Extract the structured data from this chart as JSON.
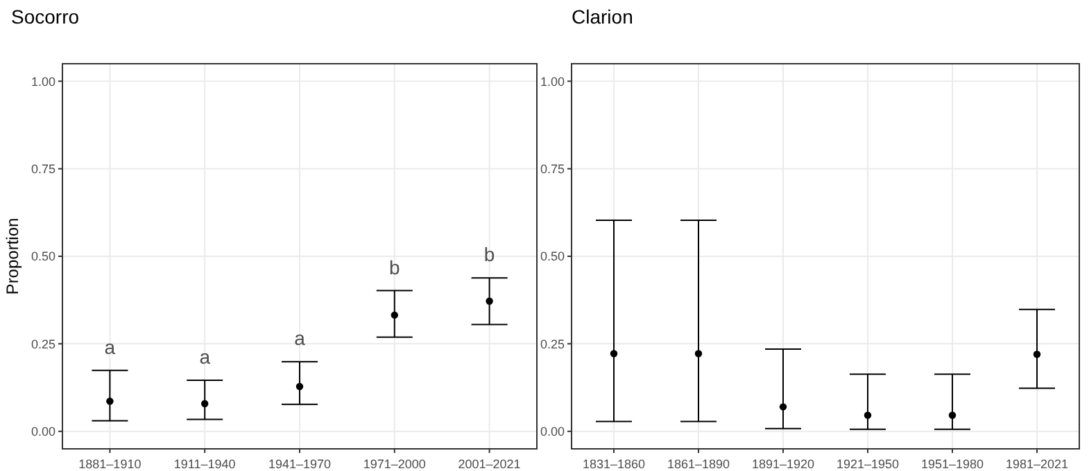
{
  "chart_data": [
    {
      "type": "scatter",
      "title": "Socorro",
      "ylabel": "Proportion",
      "categories": [
        "1881–1910",
        "1911–1940",
        "1941–1970",
        "1971–2000",
        "2001–2021"
      ],
      "values": [
        0.086,
        0.079,
        0.128,
        0.332,
        0.372
      ],
      "errors": [
        [
          0.03,
          0.174
        ],
        [
          0.034,
          0.146
        ],
        [
          0.077,
          0.199
        ],
        [
          0.269,
          0.402
        ],
        [
          0.305,
          0.438
        ]
      ],
      "color": "#000000",
      "marker": "circle",
      "ylim": [
        -0.05,
        1.05
      ],
      "yticks": [
        {
          "value": 0,
          "label": "0.00"
        },
        {
          "value": 0.25,
          "label": "0.25"
        },
        {
          "value": 0.5,
          "label": "0.50"
        },
        {
          "value": 0.75,
          "label": "0.75"
        },
        {
          "value": 1,
          "label": "1.00"
        }
      ],
      "grid": true,
      "annotations": [
        "a",
        "a",
        "a",
        "b",
        "b"
      ]
    },
    {
      "type": "scatter",
      "title": "Clarion",
      "categories": [
        "1831–1860",
        "1861–1890",
        "1891–1920",
        "1921–1950",
        "1951–1980",
        "1981–2021"
      ],
      "values": [
        0.222,
        0.222,
        0.07,
        0.046,
        0.046,
        0.22
      ],
      "errors": [
        [
          0.028,
          0.603
        ],
        [
          0.028,
          0.603
        ],
        [
          0.008,
          0.235
        ],
        [
          0.006,
          0.163
        ],
        [
          0.006,
          0.163
        ],
        [
          0.123,
          0.348
        ]
      ],
      "color": "#000000",
      "marker": "circle",
      "ylim": [
        -0.05,
        1.05
      ],
      "yticks": [
        {
          "value": 0,
          "label": "0.00"
        },
        {
          "value": 0.25,
          "label": "0.25"
        },
        {
          "value": 0.5,
          "label": "0.50"
        },
        {
          "value": 0.75,
          "label": "0.75"
        },
        {
          "value": 1,
          "label": "1.00"
        }
      ],
      "grid": true
    }
  ]
}
